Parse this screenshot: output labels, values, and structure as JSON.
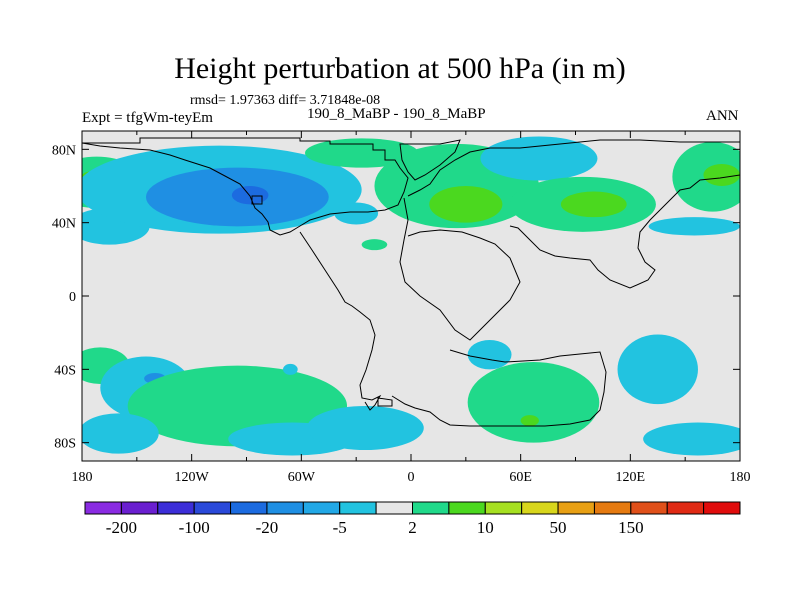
{
  "header": {
    "title": "Height perturbation at 500 hPa (in m)",
    "stats": "rmsd= 1.97363 diff= 3.71848e-08",
    "expt": "Expt = tfgWm-teyEm",
    "case": "190_8_MaBP - 190_8_MaBP",
    "season": "ANN"
  },
  "map": {
    "lon_range": [
      -180,
      180
    ],
    "lat_range": [
      -90,
      90
    ],
    "background_color": "#e6e6e6",
    "lat_ticks": [
      {
        "value": 80,
        "label": "80N"
      },
      {
        "value": 40,
        "label": "40N"
      },
      {
        "value": 0,
        "label": "0"
      },
      {
        "value": -40,
        "label": "40S"
      },
      {
        "value": -80,
        "label": "80S"
      }
    ],
    "lon_ticks": [
      {
        "value": -180,
        "label": "180"
      },
      {
        "value": -120,
        "label": "120W"
      },
      {
        "value": -60,
        "label": "60W"
      },
      {
        "value": 0,
        "label": "0"
      },
      {
        "value": 60,
        "label": "60E"
      },
      {
        "value": 120,
        "label": "120E"
      },
      {
        "value": 180,
        "label": "180"
      }
    ]
  },
  "chart_data": {
    "type": "heatmap",
    "title": "Height perturbation at 500 hPa (in m)",
    "units": "m",
    "levels_colors": [
      "#8a2be2",
      "#6a1fd0",
      "#3c2ed8",
      "#2a49d9",
      "#1c6be0",
      "#1f8fe3",
      "#22a8e6",
      "#22c3e0",
      "#e6e6e6",
      "#20d98a",
      "#4bd81f",
      "#a6e021",
      "#d8d61c",
      "#e8a014",
      "#e57a10",
      "#e0501a",
      "#e02a14",
      "#e00c0c"
    ],
    "colorbar_labels": [
      {
        "index": 1,
        "label": "-200"
      },
      {
        "index": 3,
        "label": "-100"
      },
      {
        "index": 5,
        "label": "-20"
      },
      {
        "index": 7,
        "label": "-5"
      },
      {
        "index": 9,
        "label": "2"
      },
      {
        "index": 11,
        "label": "10"
      },
      {
        "index": 13,
        "label": "50"
      },
      {
        "index": 15,
        "label": "150"
      }
    ],
    "regions": [
      {
        "lon": -172,
        "lat": 62,
        "rlon": 26,
        "rlat": 14,
        "value": 5,
        "color": "#20d98a"
      },
      {
        "lon": -175,
        "lat": 62,
        "rlon": 7,
        "rlat": 6,
        "value": 10,
        "color": "#4bd81f"
      },
      {
        "lon": -165,
        "lat": 38,
        "rlon": 22,
        "rlat": 10,
        "value": -5,
        "color": "#22c3e0"
      },
      {
        "lon": -105,
        "lat": 58,
        "rlon": 78,
        "rlat": 24,
        "value": -5,
        "color": "#22c3e0"
      },
      {
        "lon": -95,
        "lat": 54,
        "rlon": 50,
        "rlat": 16,
        "value": -10,
        "color": "#1f8fe3"
      },
      {
        "lon": -88,
        "lat": 55,
        "rlon": 10,
        "rlat": 5,
        "value": -20,
        "color": "#1c6be0"
      },
      {
        "lon": -30,
        "lat": 45,
        "rlon": 12,
        "rlat": 6,
        "value": -5,
        "color": "#22c3e0"
      },
      {
        "lon": -27,
        "lat": 78,
        "rlon": 31,
        "rlat": 8,
        "value": 5,
        "color": "#20d98a"
      },
      {
        "lon": 25,
        "lat": 60,
        "rlon": 45,
        "rlat": 23,
        "value": 5,
        "color": "#20d98a"
      },
      {
        "lon": 30,
        "lat": 50,
        "rlon": 20,
        "rlat": 10,
        "value": 10,
        "color": "#4bd81f"
      },
      {
        "lon": -20,
        "lat": 28,
        "rlon": 7,
        "rlat": 3,
        "value": 5,
        "color": "#20d98a"
      },
      {
        "lon": 70,
        "lat": 75,
        "rlon": 32,
        "rlat": 12,
        "value": -5,
        "color": "#22c3e0"
      },
      {
        "lon": 94,
        "lat": 50,
        "rlon": 40,
        "rlat": 15,
        "value": 5,
        "color": "#20d98a"
      },
      {
        "lon": 100,
        "lat": 50,
        "rlon": 18,
        "rlat": 7,
        "value": 10,
        "color": "#4bd81f"
      },
      {
        "lon": 165,
        "lat": 65,
        "rlon": 22,
        "rlat": 19,
        "value": 5,
        "color": "#20d98a"
      },
      {
        "lon": 170,
        "lat": 66,
        "rlon": 10,
        "rlat": 6,
        "value": 10,
        "color": "#4bd81f"
      },
      {
        "lon": 155,
        "lat": 38,
        "rlon": 25,
        "rlat": 5,
        "value": -5,
        "color": "#22c3e0"
      },
      {
        "lon": -170,
        "lat": -38,
        "rlon": 16,
        "rlat": 10,
        "value": 5,
        "color": "#20d98a"
      },
      {
        "lon": -145,
        "lat": -50,
        "rlon": 25,
        "rlat": 17,
        "value": -5,
        "color": "#22c3e0"
      },
      {
        "lon": -140,
        "lat": -45,
        "rlon": 6,
        "rlat": 3,
        "value": -10,
        "color": "#1f8fe3"
      },
      {
        "lon": -95,
        "lat": -60,
        "rlon": 60,
        "rlat": 22,
        "value": 5,
        "color": "#20d98a"
      },
      {
        "lon": -160,
        "lat": -75,
        "rlon": 22,
        "rlat": 11,
        "value": -5,
        "color": "#22c3e0"
      },
      {
        "lon": -65,
        "lat": -78,
        "rlon": 35,
        "rlat": 9,
        "value": -5,
        "color": "#22c3e0"
      },
      {
        "lon": -25,
        "lat": -72,
        "rlon": 32,
        "rlat": 12,
        "value": -5,
        "color": "#22c3e0"
      },
      {
        "lon": 43,
        "lat": -32,
        "rlon": 12,
        "rlat": 8,
        "value": -5,
        "color": "#22c3e0"
      },
      {
        "lon": -66,
        "lat": -40,
        "rlon": 4,
        "rlat": 3,
        "value": -5,
        "color": "#22c3e0"
      },
      {
        "lon": 67,
        "lat": -58,
        "rlon": 36,
        "rlat": 22,
        "value": 5,
        "color": "#20d98a"
      },
      {
        "lon": 65,
        "lat": -68,
        "rlon": 5,
        "rlat": 3,
        "value": 10,
        "color": "#4bd81f"
      },
      {
        "lon": 135,
        "lat": -40,
        "rlon": 22,
        "rlat": 19,
        "value": -5,
        "color": "#22c3e0"
      },
      {
        "lon": 157,
        "lat": -78,
        "rlon": 30,
        "rlat": 9,
        "value": -5,
        "color": "#22c3e0"
      }
    ]
  }
}
